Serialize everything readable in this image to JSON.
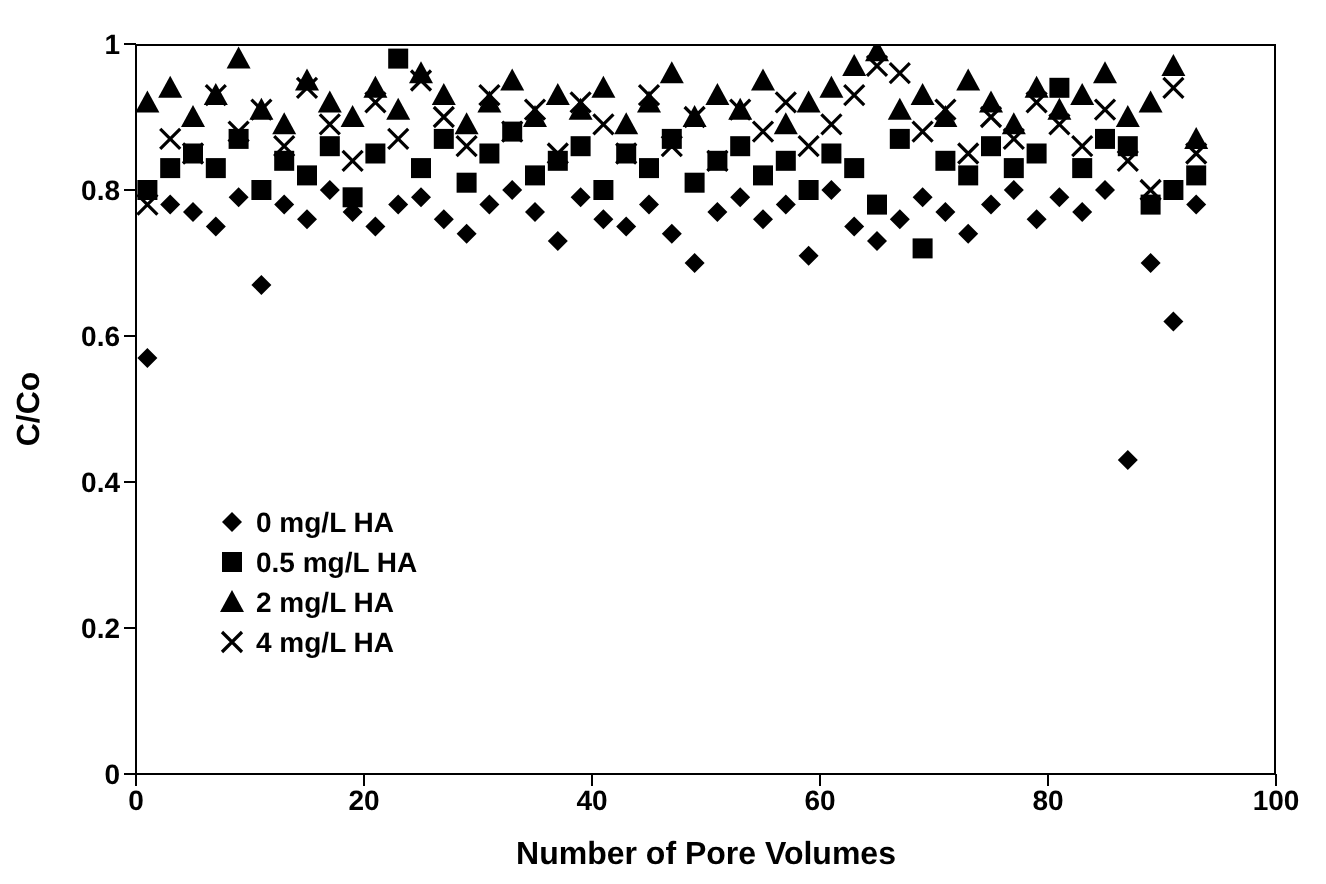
{
  "chart_data": {
    "type": "scatter",
    "xlabel": "Number of Pore Volumes",
    "ylabel": "C/Co",
    "x": [
      1,
      3,
      5,
      7,
      9,
      11,
      13,
      15,
      17,
      19,
      21,
      23,
      25,
      27,
      29,
      31,
      33,
      35,
      37,
      39,
      41,
      43,
      45,
      47,
      49,
      51,
      53,
      55,
      57,
      59,
      61,
      63,
      65,
      67,
      69,
      71,
      73,
      75,
      77,
      79,
      81,
      83,
      85,
      87,
      89,
      91,
      93
    ],
    "series": [
      {
        "name": "0 mg/L HA",
        "color": "#000000",
        "marker": "diamond",
        "values": [
          0.57,
          0.78,
          0.77,
          0.75,
          0.79,
          0.67,
          0.78,
          0.76,
          0.8,
          0.77,
          0.75,
          0.78,
          0.79,
          0.76,
          0.74,
          0.78,
          0.8,
          0.77,
          0.73,
          0.79,
          0.76,
          0.75,
          0.78,
          0.74,
          0.7,
          0.77,
          0.79,
          0.76,
          0.78,
          0.71,
          0.8,
          0.75,
          0.73,
          0.76,
          0.79,
          0.77,
          0.74,
          0.78,
          0.8,
          0.76,
          0.79,
          0.77,
          0.8,
          0.43,
          0.7,
          0.62,
          0.78
        ]
      },
      {
        "name": "0.5 mg/L HA",
        "color": "#000000",
        "marker": "square",
        "values": [
          0.8,
          0.83,
          0.85,
          0.83,
          0.87,
          0.8,
          0.84,
          0.82,
          0.86,
          0.79,
          0.85,
          0.98,
          0.83,
          0.87,
          0.81,
          0.85,
          0.88,
          0.82,
          0.84,
          0.86,
          0.8,
          0.85,
          0.83,
          0.87,
          0.81,
          0.84,
          0.86,
          0.82,
          0.84,
          0.8,
          0.85,
          0.83,
          0.78,
          0.87,
          0.72,
          0.84,
          0.82,
          0.86,
          0.83,
          0.85,
          0.94,
          0.83,
          0.87,
          0.86,
          0.78,
          0.8,
          0.82
        ]
      },
      {
        "name": "2 mg/L HA",
        "color": "#000000",
        "marker": "triangle",
        "values": [
          0.92,
          0.94,
          0.9,
          0.93,
          0.98,
          0.91,
          0.89,
          0.95,
          0.92,
          0.9,
          0.94,
          0.91,
          0.96,
          0.93,
          0.89,
          0.92,
          0.95,
          0.9,
          0.93,
          0.91,
          0.94,
          0.89,
          0.92,
          0.96,
          0.9,
          0.93,
          0.91,
          0.95,
          0.89,
          0.92,
          0.94,
          0.97,
          0.99,
          0.91,
          0.93,
          0.9,
          0.95,
          0.92,
          0.89,
          0.94,
          0.91,
          0.93,
          0.96,
          0.9,
          0.92,
          0.97,
          0.87
        ]
      },
      {
        "name": "4 mg/L HA",
        "color": "#000000",
        "marker": "cross",
        "values": [
          0.78,
          0.87,
          0.85,
          0.93,
          0.88,
          0.91,
          0.86,
          0.94,
          0.89,
          0.84,
          0.92,
          0.87,
          0.95,
          0.9,
          0.86,
          0.93,
          0.88,
          0.91,
          0.85,
          0.92,
          0.89,
          0.85,
          0.93,
          0.86,
          0.9,
          0.84,
          0.91,
          0.88,
          0.92,
          0.86,
          0.89,
          0.93,
          0.97,
          0.96,
          0.88,
          0.91,
          0.85,
          0.9,
          0.87,
          0.92,
          0.89,
          0.86,
          0.91,
          0.84,
          0.8,
          0.94,
          0.85
        ]
      }
    ],
    "xlim": [
      0,
      100
    ],
    "xticks": [
      0,
      20,
      40,
      60,
      80,
      100
    ],
    "ylim": [
      0,
      1
    ],
    "yticks": [
      0,
      0.2,
      0.4,
      0.6,
      0.8,
      1
    ],
    "grid": false,
    "legend": "bottom left"
  }
}
